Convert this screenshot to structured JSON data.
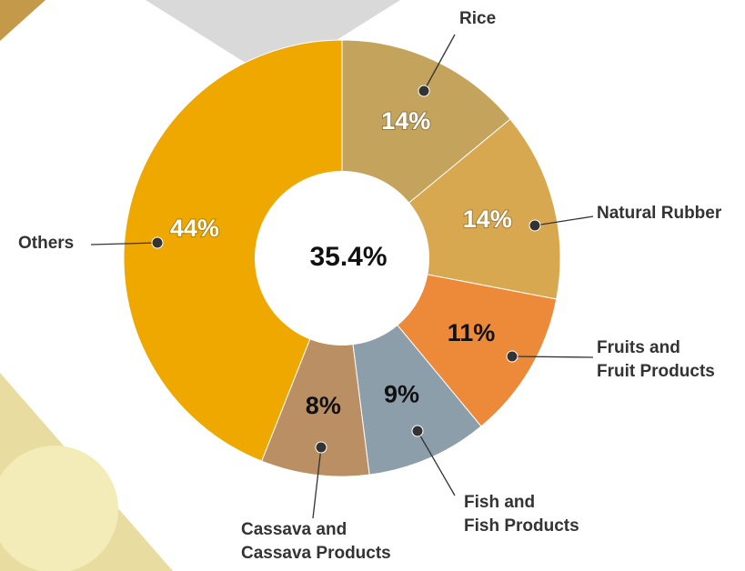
{
  "chart_data": {
    "type": "donut",
    "categories": [
      "Rice",
      "Natural Rubber",
      "Fruits and\nFruit Products",
      "Fish and\nFish Products",
      "Cassava and\nCassava Products",
      "Others"
    ],
    "values": [
      14,
      14,
      11,
      9,
      8,
      44
    ],
    "value_labels": [
      "14%",
      "14%",
      "11%",
      "9%",
      "8%",
      "44%"
    ],
    "colors": [
      "#c4a35c",
      "#d8a850",
      "#ec8a3a",
      "#8d9eab",
      "#b98f63",
      "#eea800"
    ],
    "value_label_colors": [
      "#ffffff",
      "#ffffff",
      "#111111",
      "#111111",
      "#111111",
      "#ffffff"
    ],
    "center_label": "35.4%"
  }
}
